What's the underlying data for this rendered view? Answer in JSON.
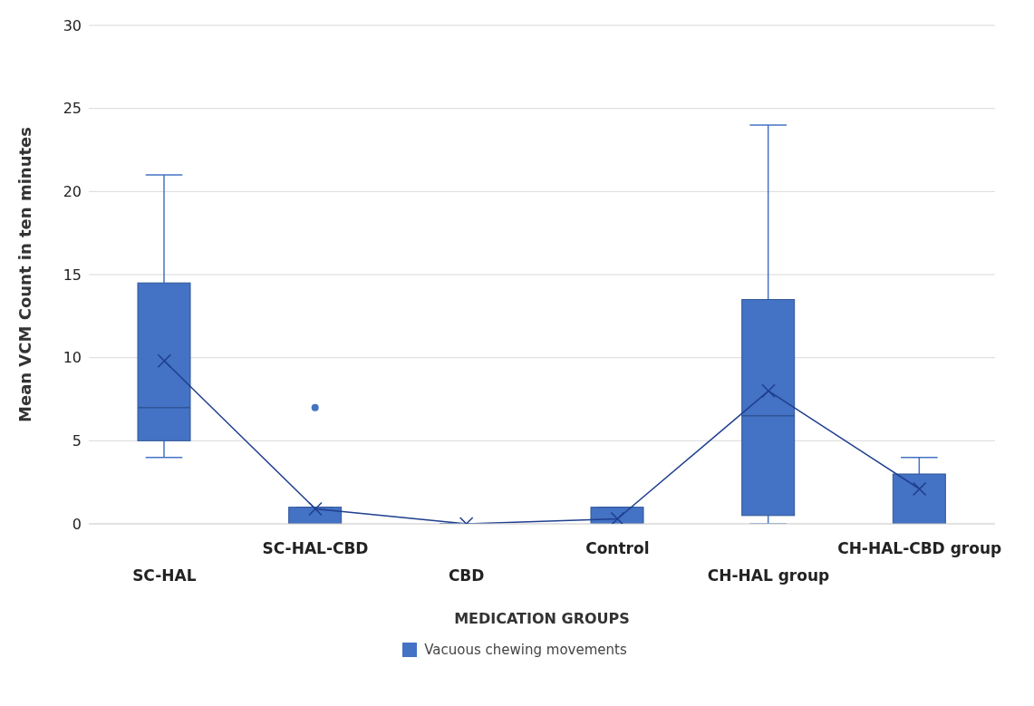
{
  "chart_data": {
    "type": "box",
    "xlabel": "MEDICATION GROUPS",
    "ylabel": "Mean VCM Count in ten minutes",
    "categories": [
      "SC-HAL",
      "SC-HAL-CBD",
      "CBD",
      "Control",
      "CH-HAL group",
      "CH-HAL-CBD group"
    ],
    "ylim": [
      0,
      30
    ],
    "yticks": [
      0,
      5,
      10,
      15,
      20,
      25,
      30
    ],
    "grid": "y",
    "legend": "bottom",
    "marker": "cross",
    "series": [
      {
        "name": "Vacuous chewing movements",
        "type": "box",
        "color": "#4472c4",
        "boxes": [
          {
            "low": 4,
            "q1": 5,
            "median": 7,
            "q3": 14.5,
            "high": 21
          },
          {
            "low": 0,
            "q1": 0,
            "median": 0,
            "q3": 1,
            "high": 1,
            "outliers": [
              7
            ]
          },
          {
            "low": 0,
            "q1": 0,
            "median": 0,
            "q3": 0,
            "high": 0
          },
          {
            "low": 0,
            "q1": 0,
            "median": 0,
            "q3": 1,
            "high": 1
          },
          {
            "low": 0,
            "q1": 0.5,
            "median": 6.5,
            "q3": 13.5,
            "high": 24
          },
          {
            "low": 0,
            "q1": 0,
            "median": 0,
            "q3": 3,
            "high": 4
          }
        ]
      },
      {
        "type": "line",
        "color": "#1f3f8f",
        "x": [
          "SC-HAL",
          "SC-HAL-CBD",
          "CBD",
          "Control",
          "CH-HAL group",
          "CH-HAL-CBD group"
        ],
        "values": [
          9.8,
          0.9,
          0,
          0.3,
          8,
          2.1
        ]
      }
    ]
  }
}
